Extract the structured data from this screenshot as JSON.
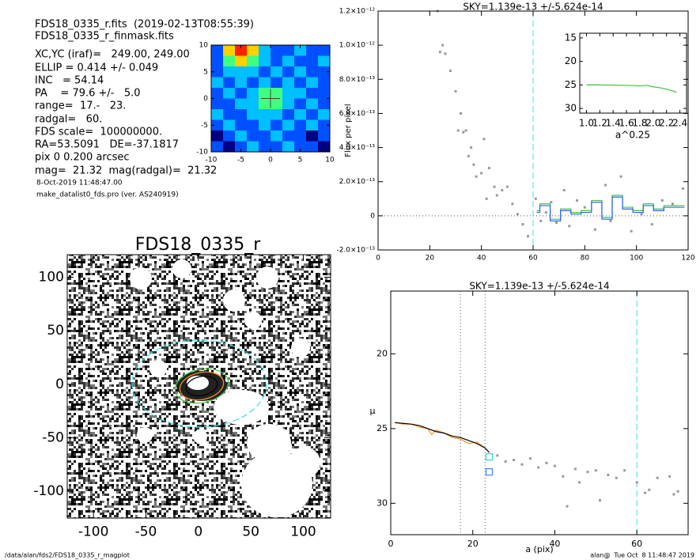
{
  "header": {
    "lines": [
      "FDS18_0335_r.fits  (2019-02-13T08:55:39)",
      "FDS18_0335_r_finmask.fits",
      "XC,YC (iraf)=   249.00, 249.00",
      "ELLIP = 0.414 +/- 0.049",
      "INC   = 54.14",
      "PA    = 79.6 +/-   5.0",
      "range=  17.-   23.",
      "radgal=   60.",
      "FDS scale=  100000000.",
      "RA=53.5091   DE=-37.1817",
      "pix 0 0.200 arcsec",
      "mag=  21.32  mag(radgal)=  21.32",
      "8-Oct-2019 11:48:47.00",
      "make_datalist0_fds.pro (ver. AS240919)"
    ]
  },
  "footer": {
    "left": "/data/alan/fds2/FDS18_0335_r_magplot",
    "right": "alan@  Tue Oct  8 11:48:47 2019"
  },
  "chart_data": [
    {
      "type": "heatmap",
      "xlim": [
        -10,
        10
      ],
      "ylim": [
        -10,
        10
      ],
      "xticks": [
        -10,
        -5,
        0,
        5,
        10
      ],
      "yticks": [
        -10,
        -5,
        0,
        5,
        10
      ],
      "colors": [
        "#000080",
        "#0050ff",
        "#00c0ff",
        "#40ff80",
        "#ffd000",
        "#ff2000"
      ],
      "z": [
        [
          1,
          4,
          5,
          4,
          2,
          1,
          1,
          2,
          1,
          1
        ],
        [
          1,
          3,
          4,
          3,
          2,
          1,
          2,
          1,
          1,
          2
        ],
        [
          1,
          2,
          2,
          2,
          1,
          2,
          1,
          2,
          1,
          1
        ],
        [
          2,
          1,
          2,
          1,
          2,
          1,
          2,
          1,
          2,
          1
        ],
        [
          1,
          2,
          1,
          2,
          3,
          3,
          2,
          2,
          1,
          1
        ],
        [
          1,
          1,
          2,
          2,
          3,
          3,
          2,
          1,
          2,
          1
        ],
        [
          2,
          1,
          1,
          2,
          2,
          2,
          1,
          2,
          1,
          2
        ],
        [
          1,
          2,
          1,
          1,
          2,
          1,
          2,
          1,
          2,
          1
        ],
        [
          0,
          1,
          2,
          1,
          1,
          2,
          1,
          1,
          0,
          1
        ],
        [
          1,
          0,
          1,
          2,
          1,
          1,
          2,
          1,
          1,
          0
        ]
      ]
    },
    {
      "type": "image",
      "title": "FDS18_0335_r",
      "xlim": [
        -125,
        126
      ],
      "ylim": [
        -125,
        121
      ],
      "xticks": [
        -100,
        -50,
        0,
        50,
        100
      ],
      "yticks": [
        -100,
        -50,
        0,
        50,
        100
      ]
    },
    {
      "type": "scatter",
      "title": "SKY=1.139e-13 +/-5.624e-14",
      "ylabel": "Flux per pixel",
      "xlim": [
        0,
        120
      ],
      "ylim": [
        -2e-13,
        1.2e-12
      ],
      "xticks": [
        0,
        20,
        40,
        60,
        80,
        100,
        120
      ],
      "yticks": [
        {
          "value": -2e-13,
          "label": "-2.0×10⁻¹³"
        },
        0,
        {
          "value": 2e-13,
          "label": "2.0×10⁻¹³"
        },
        {
          "value": 4e-13,
          "label": "4.0×10⁻¹³"
        },
        {
          "value": 6e-13,
          "label": "6.0×10⁻¹³"
        },
        {
          "value": 8e-13,
          "label": "8.0×10⁻¹³"
        },
        {
          "value": 1e-12,
          "label": "1.0×10⁻¹²"
        },
        {
          "value": 1.2e-12,
          "label": "1.2×10⁻¹²"
        }
      ],
      "vlines": [
        {
          "x": 60,
          "color": "#40e0e0"
        }
      ],
      "series": [
        {
          "color": "#999999",
          "marker": "square",
          "x": [
            23,
            24,
            25,
            26,
            28,
            30,
            31,
            32,
            33,
            34,
            35,
            36,
            37,
            38,
            40,
            41,
            42,
            43,
            45,
            46,
            48,
            50,
            52,
            54,
            56,
            58,
            61,
            63,
            65,
            67,
            69,
            72,
            74,
            77,
            80,
            84,
            88,
            90,
            94,
            98,
            102,
            106,
            110,
            114,
            118
          ],
          "values": [
            1.2e-12,
            9.6e-13,
            1e-12,
            9.5e-13,
            8.5e-13,
            7.3e-13,
            5e-13,
            6e-13,
            4.9e-13,
            5e-13,
            3.5e-13,
            4e-13,
            3e-13,
            2.3e-13,
            2.5e-13,
            4.5e-13,
            1e-13,
            2.8e-13,
            1.7e-13,
            1.2e-13,
            1.5e-13,
            1.7e-13,
            7e-14,
            1e-14,
            -5e-14,
            -1.2e-13,
            1e-13,
            -3e-14,
            2e-14,
            8e-14,
            -4e-14,
            1.5e-13,
            -6e-14,
            9e-14,
            5e-14,
            -8e-14,
            1.8e-13,
            -3e-14,
            2.3e-13,
            -9e-14,
            1e-14,
            -5e-14,
            9e-14,
            7e-14,
            1.6e-13
          ]
        },
        {
          "color": "#40c040",
          "style": "step",
          "x": [
            62,
            66,
            70,
            74,
            78,
            82,
            86,
            90,
            94,
            98,
            102,
            106,
            110,
            114,
            118
          ],
          "values": [
            3e-14,
            7e-14,
            -2e-14,
            4e-14,
            2e-14,
            3e-14,
            9e-14,
            -1e-14,
            1.2e-13,
            5e-14,
            3e-14,
            7e-14,
            4e-14,
            6e-14,
            6e-14
          ]
        },
        {
          "color": "#3060ff",
          "style": "step",
          "x": [
            62,
            66,
            70,
            74,
            78,
            82,
            86,
            90,
            94,
            98,
            102,
            106,
            110,
            114,
            118
          ],
          "values": [
            2e-14,
            6e-14,
            -3e-14,
            3e-14,
            1e-14,
            2e-14,
            8e-14,
            -2e-14,
            1.1e-13,
            4e-14,
            2e-14,
            6e-14,
            3e-14,
            5e-14,
            5e-14
          ]
        }
      ]
    },
    {
      "type": "line",
      "xlabel": "a^0.25",
      "xlim": [
        0.9,
        2.5
      ],
      "ylim": [
        31,
        14
      ],
      "xticks": [
        {
          "value": 1,
          "label": "1.0"
        },
        1.2,
        1.4,
        1.6,
        1.8,
        {
          "value": 2,
          "label": "2.0"
        },
        2.2,
        2.4
      ],
      "yticks": [
        15,
        20,
        25,
        30
      ],
      "series": [
        {
          "color": "#40c040",
          "x": [
            1.0,
            1.2,
            1.4,
            1.6,
            1.8,
            1.9,
            2.0,
            2.1,
            2.2,
            2.3,
            2.35
          ],
          "values": [
            25.0,
            25.0,
            25.05,
            25.1,
            25.2,
            25.1,
            25.4,
            25.6,
            25.9,
            26.3,
            26.6
          ]
        }
      ]
    },
    {
      "type": "line",
      "title": "SKY=1.139e-13 +/-5.624e-14",
      "xlabel": "a (pix)",
      "ylabel": "μ",
      "xlim": [
        0,
        72.5
      ],
      "ylim": [
        32.1,
        15.8
      ],
      "xticks": [
        0,
        20,
        40,
        60
      ],
      "yticks": [
        20,
        25,
        30
      ],
      "vlines": [
        {
          "x": 17,
          "color": "#555555",
          "style": "dotted"
        },
        {
          "x": 23,
          "color": "#555555",
          "style": "dotted"
        },
        {
          "x": 60,
          "color": "#40e0e0",
          "style": "dashed"
        }
      ],
      "series": [
        {
          "color": "#ff9020",
          "x": [
            1,
            3,
            5,
            7,
            9,
            10,
            11,
            13,
            15,
            17,
            19,
            21,
            23
          ],
          "values": [
            24.6,
            24.7,
            24.7,
            24.9,
            25.0,
            25.4,
            25.1,
            25.3,
            25.6,
            25.7,
            26.0,
            25.9,
            26.3
          ]
        },
        {
          "color": "#000000",
          "x": [
            1,
            3,
            5,
            7,
            9,
            11,
            13,
            15,
            17,
            19,
            21,
            23,
            24
          ],
          "values": [
            24.6,
            24.65,
            24.7,
            24.8,
            25.0,
            25.2,
            25.3,
            25.5,
            25.6,
            25.8,
            26.0,
            26.3,
            26.6
          ]
        },
        {
          "color": "#999999",
          "marker": "square",
          "x": [
            26,
            28,
            30,
            32,
            34,
            36,
            38,
            40,
            42,
            43,
            45,
            46,
            48,
            50,
            51,
            53,
            55,
            57,
            60,
            62,
            63,
            65,
            68,
            69,
            70
          ],
          "values": [
            26.8,
            27.2,
            27.1,
            27.4,
            27.0,
            27.6,
            27.3,
            27.5,
            28.2,
            30.2,
            27.7,
            28.6,
            27.9,
            27.8,
            29.8,
            28.1,
            28.3,
            27.8,
            28.6,
            29.3,
            29.1,
            28.3,
            28.2,
            29.4,
            29.2
          ]
        },
        {
          "color": "#40d0d0",
          "marker": "open-square",
          "x": [
            24
          ],
          "values": [
            26.9
          ]
        },
        {
          "color": "#4080ff",
          "marker": "open-square",
          "x": [
            24
          ],
          "values": [
            27.9
          ]
        }
      ]
    }
  ]
}
